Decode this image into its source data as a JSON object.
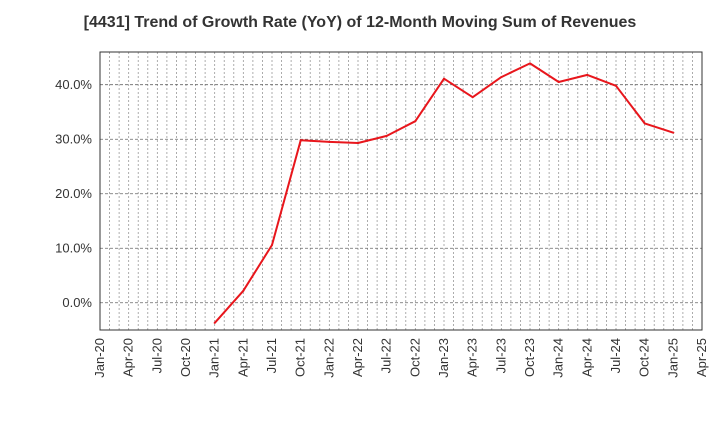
{
  "chart_data": {
    "type": "line",
    "title": "[4431]  Trend of Growth Rate (YoY) of 12-Month Moving Sum of Revenues",
    "xlabel": "",
    "ylabel": "",
    "x_ticks": [
      "Jan-20",
      "Apr-20",
      "Jul-20",
      "Oct-20",
      "Jan-21",
      "Apr-21",
      "Jul-21",
      "Oct-21",
      "Jan-22",
      "Apr-22",
      "Jul-22",
      "Oct-22",
      "Jan-23",
      "Apr-23",
      "Jul-23",
      "Oct-23",
      "Jan-24",
      "Apr-24",
      "Jul-24",
      "Oct-24",
      "Jan-25",
      "Apr-25"
    ],
    "y_ticks": [
      0,
      10,
      20,
      30,
      40
    ],
    "y_tick_labels": [
      "0.0%",
      "10.0%",
      "20.0%",
      "30.0%",
      "40.0%"
    ],
    "ylim": [
      -5,
      46
    ],
    "grid": true,
    "series": [
      {
        "color": "#e8161c",
        "x": [
          "Jan-21",
          "Apr-21",
          "Jul-21",
          "Oct-21",
          "Jan-22",
          "Apr-22",
          "Jul-22",
          "Oct-22",
          "Jan-23",
          "Apr-23",
          "Jul-23",
          "Oct-23",
          "Jan-24",
          "Apr-24",
          "Jul-24",
          "Oct-24",
          "Jan-25"
        ],
        "values": [
          -3.7,
          2.2,
          10.6,
          29.8,
          29.5,
          29.3,
          30.6,
          33.3,
          41.1,
          37.7,
          41.4,
          43.9,
          40.5,
          41.8,
          39.8,
          32.9,
          31.2
        ]
      }
    ]
  }
}
